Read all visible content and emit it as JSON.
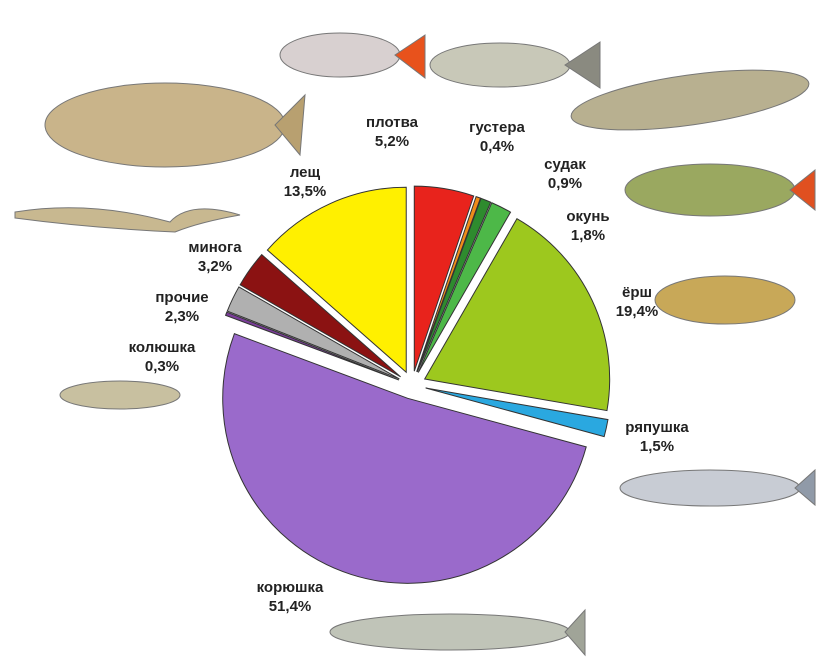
{
  "chart_data": {
    "type": "pie",
    "categories": [
      "плотва",
      "густера",
      "судак",
      "окунь",
      "ёрш",
      "ряпушка",
      "корюшка",
      "колюшка",
      "прочие",
      "минога",
      "лещ"
    ],
    "values": [
      5.2,
      0.4,
      0.9,
      1.8,
      19.4,
      1.5,
      51.4,
      0.3,
      2.3,
      3.2,
      13.5
    ],
    "value_labels": [
      "5,2%",
      "0,4%",
      "0,9%",
      "1,8%",
      "19,4%",
      "1,5%",
      "51,4%",
      "0,3%",
      "2,3%",
      "3,2%",
      "13,5%"
    ],
    "colors": [
      "#e8231c",
      "#f08c1a",
      "#2e8b2e",
      "#4db848",
      "#9dc81e",
      "#2aa8e0",
      "#9a6acb",
      "#7a3d99",
      "#b0b0b0",
      "#8b1212",
      "#fff000"
    ]
  }
}
